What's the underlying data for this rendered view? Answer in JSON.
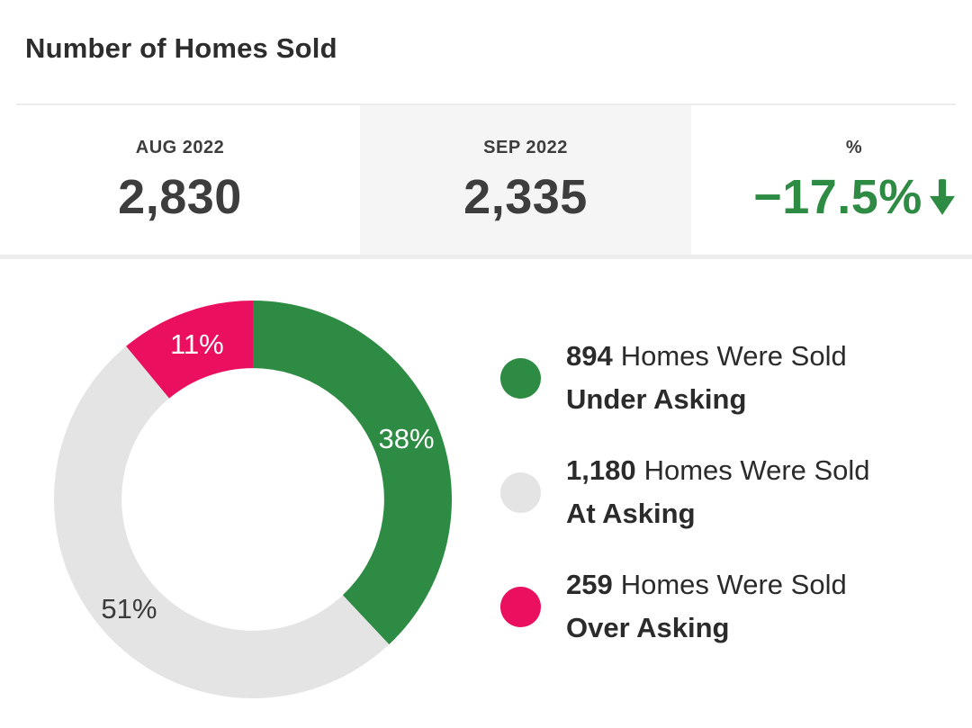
{
  "header": {
    "title": "Number of Homes Sold"
  },
  "stats": {
    "columns": [
      {
        "label": "AUG 2022",
        "value": "2,830"
      },
      {
        "label": "SEP 2022",
        "value": "2,335",
        "bg": "#f5f5f5"
      },
      {
        "label": "%",
        "value": "−17.5%",
        "value_color": "#2e8b44",
        "trend": "down",
        "trend_icon": "arrow-down-icon"
      }
    ]
  },
  "chart_data": {
    "type": "pie",
    "subtype": "donut",
    "title": "Number of Homes Sold",
    "categories": [
      "Under Asking",
      "At Asking",
      "Over Asking"
    ],
    "values": [
      894,
      1180,
      259
    ],
    "percents": [
      38,
      51,
      11
    ],
    "percent_labels": [
      "38%",
      "51%",
      "11%"
    ],
    "colors": [
      "#2e8b44",
      "#e4e4e4",
      "#ea0f5f"
    ],
    "percent_label_colors": [
      "#ffffff",
      "#3a3a3a",
      "#ffffff"
    ],
    "start_angle_deg": -90,
    "direction": "clockwise",
    "inner_radius_ratio": 0.66,
    "legend_position": "right"
  },
  "legend": {
    "items": [
      {
        "count": "894",
        "text": "Homes Were Sold",
        "category": "Under Asking",
        "color": "#2e8b44"
      },
      {
        "count": "1,180",
        "text": "Homes Were Sold",
        "category": "At Asking",
        "color": "#e4e4e4"
      },
      {
        "count": "259",
        "text": "Homes Were Sold",
        "category": "Over Asking",
        "color": "#ea0f5f"
      }
    ]
  }
}
